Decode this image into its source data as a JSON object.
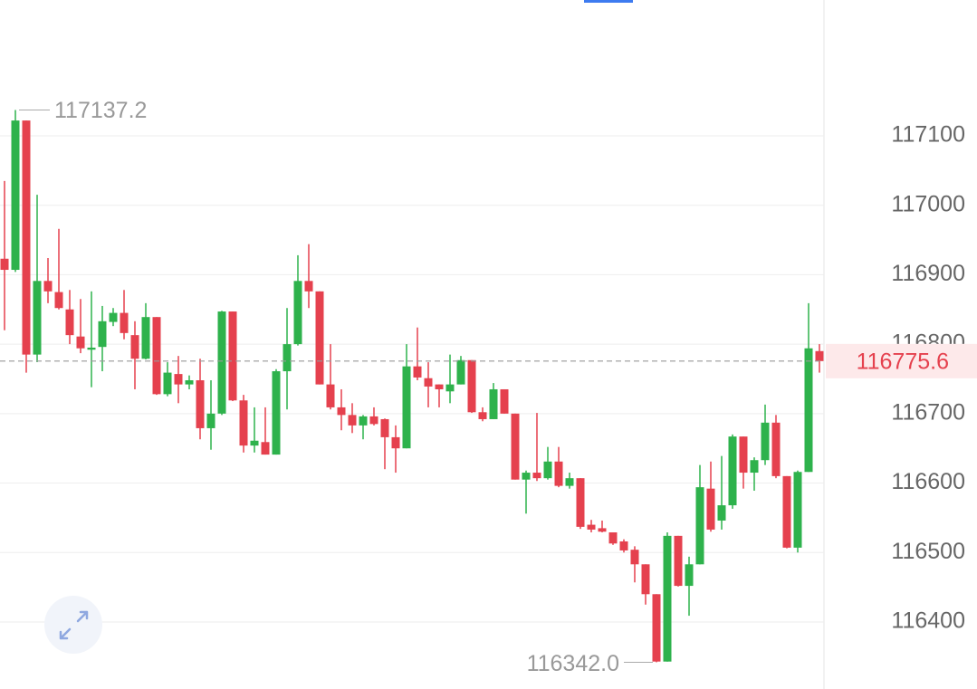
{
  "chart_data": {
    "type": "candlestick",
    "ylim": [
      116303.5,
      117295.5
    ],
    "yticks": [
      116400,
      116500,
      116600,
      116700,
      116800,
      116900,
      117000,
      117100
    ],
    "grid": true,
    "up_color": "#2eb24c",
    "down_color": "#e5414e",
    "max_label": 117137.2,
    "min_label": {
      "value": 116342,
      "label": "116342.0"
    },
    "last_price": 116775.6,
    "series": {
      "open": [
        116923,
        116907,
        117122,
        116785,
        116891,
        116875,
        116850,
        116811,
        116792,
        116796,
        116832,
        116845,
        116813,
        116779,
        116839,
        116728,
        116757,
        116742,
        116748,
        116679,
        116700,
        116847,
        116719,
        116654,
        116659,
        116641,
        116761,
        116800,
        116891,
        116876,
        116742,
        116709,
        116698,
        116683,
        116696,
        116692,
        116666,
        116650,
        116768,
        116751,
        116742,
        116732,
        116742,
        116777,
        116702,
        116692,
        116735,
        116700,
        116605,
        116615,
        116607,
        116631,
        116596,
        116607,
        116540,
        116535,
        116529,
        116516,
        116504,
        116483,
        116440,
        116343,
        116524,
        116452,
        116483,
        116592,
        116546,
        116568,
        116667,
        116615,
        116633,
        116687,
        116610,
        116507,
        116616,
        116790
      ],
      "high": [
        117035,
        117137.2,
        117122,
        117015,
        116924,
        116966,
        116878,
        116865,
        116876,
        116855,
        116852,
        116878,
        116833,
        116859,
        116839,
        116774,
        116783,
        116755,
        116779,
        116748,
        116848,
        116847,
        116727,
        116709,
        116709,
        116764,
        116852,
        116928,
        116944,
        116876,
        116800,
        116735,
        116715,
        116698,
        116709,
        116693,
        116683,
        116800,
        116824,
        116774,
        116742,
        116785,
        116783,
        116777,
        116709,
        116744,
        116735,
        116700,
        116618,
        116701,
        116652,
        116652,
        116615,
        116607,
        116547,
        116546,
        116529,
        116519,
        116509,
        116483,
        116440,
        116529,
        116524,
        116494,
        116626,
        116631,
        116639,
        116670,
        116667,
        116637,
        116713,
        116698,
        116610,
        116618,
        116859,
        116800
      ],
      "low": [
        116820,
        116904,
        116759,
        116774,
        116859,
        116850,
        116800,
        116787,
        116738,
        116761,
        116826,
        116807,
        116735,
        116778,
        116727,
        116725,
        116715,
        116735,
        116663,
        116648,
        116698,
        116718,
        116644,
        116644,
        116641,
        116641,
        116706,
        116798,
        116852,
        116742,
        116706,
        116676,
        116672,
        116663,
        116683,
        116620,
        116615,
        116650,
        116748,
        116709,
        116709,
        116715,
        116742,
        116701,
        116689,
        116692,
        116700,
        116605,
        116556,
        116603,
        116605,
        116594,
        116592,
        116534,
        116529,
        116529,
        116511,
        116500,
        116457,
        116425,
        116342,
        116343,
        116451,
        116409,
        116483,
        116530,
        116533,
        116563,
        116592,
        116589,
        116626,
        116607,
        116506,
        116500,
        116616,
        116759
      ],
      "close": [
        116907,
        117122,
        116785,
        116891,
        116876,
        116852,
        116813,
        116794,
        116795,
        116833,
        116845,
        116816,
        116779,
        116839,
        116728,
        116759,
        116742,
        116748,
        116679,
        116700,
        116847,
        116719,
        116654,
        116661,
        116641,
        116761,
        116800,
        116891,
        116876,
        116742,
        116709,
        116698,
        116683,
        116696,
        116685,
        116666,
        116650,
        116768,
        116752,
        116739,
        116735,
        116742,
        116777,
        116702,
        116692,
        116735,
        116700,
        116605,
        116615,
        116607,
        116631,
        116596,
        116607,
        116537,
        116533,
        116530,
        116513,
        116503,
        116483,
        116440,
        116343,
        116524,
        116452,
        116483,
        116594,
        116533,
        116568,
        116667,
        116615,
        116633,
        116687,
        116610,
        116507,
        116616,
        116794,
        116775.6
      ]
    }
  }
}
